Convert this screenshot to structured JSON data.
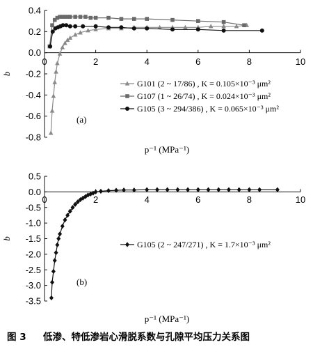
{
  "chart_data": [
    {
      "type": "line",
      "panel_label": "(a)",
      "xlabel": "p⁻¹ (MPa⁻¹)",
      "ylabel": "b",
      "xlim": [
        0,
        10
      ],
      "ylim": [
        -0.8,
        0.4
      ],
      "x_ticks": [
        "0",
        "2",
        "4",
        "6",
        "8",
        "10"
      ],
      "y_ticks": [
        "0.4",
        "0.2",
        "0.0",
        "-0.2",
        "-0.4",
        "-0.6",
        "-0.8"
      ],
      "legend_placement": "lower-right",
      "series": [
        {
          "name": "G101 (2 ~ 17/86) , K = 0.105×10⁻³ μm²",
          "marker": "triangle",
          "x": [
            0.25,
            0.3,
            0.35,
            0.4,
            0.45,
            0.5,
            0.6,
            0.7,
            0.8,
            0.9,
            1.0,
            1.2,
            1.4,
            1.7,
            2.0,
            2.5,
            3.0,
            3.5,
            4.0,
            4.5,
            5.0,
            5.5,
            6.0,
            6.5,
            7.0,
            7.5,
            7.9
          ],
          "y": [
            -0.76,
            -0.55,
            -0.41,
            -0.28,
            -0.18,
            -0.1,
            -0.01,
            0.05,
            0.09,
            0.12,
            0.14,
            0.17,
            0.19,
            0.21,
            0.22,
            0.23,
            0.23,
            0.24,
            0.24,
            0.24,
            0.24,
            0.24,
            0.24,
            0.25,
            0.25,
            0.25,
            0.26
          ]
        },
        {
          "name": "G107 (1 ~ 26/74) , K = 0.024×10⁻³ μm²",
          "marker": "square",
          "x": [
            0.2,
            0.3,
            0.4,
            0.5,
            0.6,
            0.7,
            0.8,
            0.9,
            1.0,
            1.2,
            1.4,
            1.6,
            1.8,
            2.0,
            2.5,
            3.0,
            3.5,
            4.0,
            5.0,
            6.0,
            7.0,
            7.8
          ],
          "y": [
            0.06,
            0.26,
            0.31,
            0.33,
            0.34,
            0.34,
            0.34,
            0.34,
            0.34,
            0.34,
            0.34,
            0.34,
            0.33,
            0.33,
            0.33,
            0.32,
            0.32,
            0.32,
            0.31,
            0.3,
            0.29,
            0.26
          ]
        },
        {
          "name": "G105 (3 ~ 294/386) , K = 0.065×10⁻³ μm²",
          "marker": "circle",
          "x": [
            0.22,
            0.32,
            0.42,
            0.52,
            0.62,
            0.72,
            0.85,
            1.0,
            1.2,
            1.5,
            2.0,
            2.5,
            3.0,
            3.5,
            4.0,
            5.0,
            6.0,
            7.0,
            8.5
          ],
          "y": [
            0.06,
            0.2,
            0.23,
            0.24,
            0.25,
            0.26,
            0.26,
            0.25,
            0.25,
            0.25,
            0.25,
            0.24,
            0.24,
            0.23,
            0.23,
            0.22,
            0.22,
            0.21,
            0.21
          ]
        }
      ]
    },
    {
      "type": "line",
      "panel_label": "(b)",
      "xlabel": "p⁻¹ (MPa⁻¹)",
      "ylabel": "b",
      "xlim": [
        0,
        10
      ],
      "ylim": [
        -3.5,
        0.5
      ],
      "x_ticks": [
        "0",
        "2",
        "4",
        "6",
        "8",
        "10"
      ],
      "y_ticks": [
        "0.5",
        "0.0",
        "-0.5",
        "-1.0",
        "-1.5",
        "-2.0",
        "-2.5",
        "-3.0",
        "-3.5"
      ],
      "legend_placement": "center-right",
      "series": [
        {
          "name": "G105 (2 ~ 247/271) , K = 1.7×10⁻³ μm²",
          "marker": "diamond",
          "x": [
            0.27,
            0.3,
            0.35,
            0.4,
            0.45,
            0.5,
            0.55,
            0.6,
            0.7,
            0.8,
            0.9,
            1.0,
            1.1,
            1.2,
            1.3,
            1.4,
            1.5,
            1.6,
            1.7,
            1.8,
            1.9,
            2.0,
            2.2,
            2.5,
            2.8,
            3.1,
            3.5,
            4.0,
            4.4,
            4.8,
            5.2,
            5.6,
            6.0,
            6.4,
            6.8,
            7.2,
            7.6,
            8.0,
            8.4,
            9.1
          ],
          "y": [
            -3.4,
            -2.9,
            -2.55,
            -2.2,
            -1.95,
            -1.7,
            -1.5,
            -1.35,
            -1.1,
            -0.9,
            -0.75,
            -0.62,
            -0.5,
            -0.4,
            -0.32,
            -0.25,
            -0.2,
            -0.15,
            -0.1,
            -0.07,
            -0.04,
            0.0,
            0.02,
            0.04,
            0.05,
            0.06,
            0.06,
            0.07,
            0.07,
            0.07,
            0.07,
            0.07,
            0.07,
            0.07,
            0.07,
            0.07,
            0.07,
            0.07,
            0.07,
            0.07
          ]
        }
      ]
    }
  ],
  "caption": {
    "label": "图 3",
    "text": "低渗、特低渗岩心滑脱系数与孔隙平均压力关系图"
  }
}
